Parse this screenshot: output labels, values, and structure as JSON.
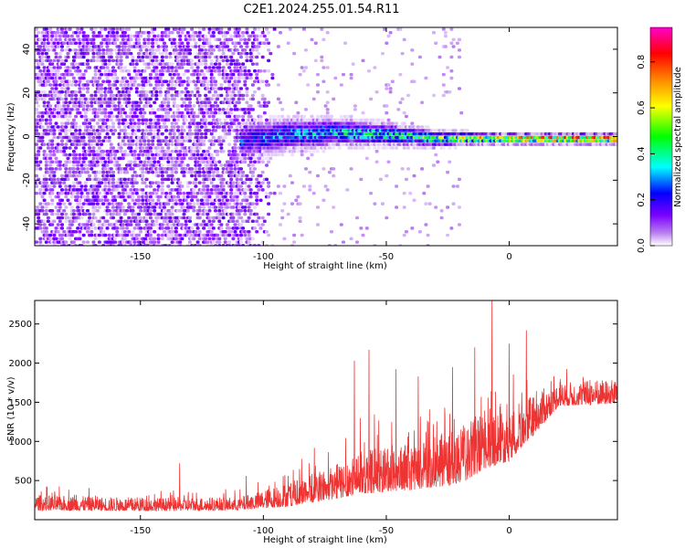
{
  "title": "C2E1.2024.255.01.54.R11",
  "chart_data": [
    {
      "type": "heatmap",
      "xlabel": "Height of straight line (km)",
      "ylabel": "Frequency (Hz)",
      "xlim": [
        -193,
        44
      ],
      "ylim": [
        -50,
        50
      ],
      "xticks": [
        -150,
        -100,
        -50,
        0
      ],
      "yticks": [
        -40,
        -20,
        0,
        20,
        40
      ],
      "colorbar": {
        "label": "Normalized spectral amplitude",
        "range": [
          0,
          0.95
        ],
        "ticks": [
          0.0,
          0.2,
          0.4,
          0.6,
          0.8
        ],
        "tick_labels": [
          "0.0",
          "0.2",
          "0.4",
          "0.6",
          "0.8"
        ],
        "colormap": [
          "#ffffff",
          "#b87cf0",
          "#7a00ff",
          "#0000ff",
          "#00ffff",
          "#00ff00",
          "#ffff00",
          "#ff8800",
          "#ff0000",
          "#ff00cc"
        ]
      },
      "signal_band": {
        "x": [
          -110,
          -90,
          -70,
          -50,
          -30,
          -10,
          10,
          30,
          44
        ],
        "center_freq": [
          -2,
          1,
          2,
          1,
          -1,
          -1,
          -1,
          -1,
          -1
        ],
        "half_width": [
          6,
          6,
          5,
          4,
          3,
          2,
          2,
          2,
          2
        ],
        "peak_amplitude": [
          0.35,
          0.4,
          0.45,
          0.5,
          0.55,
          0.75,
          0.85,
          0.85,
          0.85
        ]
      },
      "noise_region": {
        "x": [
          -193,
          -110
        ],
        "freq": [
          -50,
          50
        ],
        "typical_amplitude": 0.15
      }
    },
    {
      "type": "line",
      "xlabel": "Height of straight line (km)",
      "ylabel": "SNR (10 * v/v)",
      "xlim": [
        -193,
        44
      ],
      "ylim": [
        0,
        2800
      ],
      "xticks": [
        -150,
        -100,
        -50,
        0
      ],
      "yticks": [
        500,
        1000,
        1500,
        2000,
        2500
      ],
      "series": [
        {
          "color": "#ee3333",
          "envelope": {
            "x": [
              -193,
              -150,
              -110,
              -90,
              -70,
              -60,
              -40,
              -20,
              -10,
              0,
              10,
              20,
              44
            ],
            "base": [
              120,
              110,
              120,
              170,
              270,
              330,
              380,
              450,
              650,
              750,
              1080,
              1450,
              1480
            ],
            "spread": [
              200,
              170,
              170,
              300,
              450,
              550,
              600,
              700,
              750,
              750,
              500,
              300,
              320
            ]
          },
          "peaks": [
            {
              "x": -134,
              "y": 720
            },
            {
              "x": -107,
              "y": 560
            },
            {
              "x": -63,
              "y": 2030
            },
            {
              "x": -57,
              "y": 2170
            },
            {
              "x": -46,
              "y": 1920
            },
            {
              "x": -37,
              "y": 1830
            },
            {
              "x": -23,
              "y": 1950
            },
            {
              "x": -14,
              "y": 2200
            },
            {
              "x": -7,
              "y": 2800
            },
            {
              "x": 7,
              "y": 2420
            }
          ]
        }
      ]
    }
  ]
}
